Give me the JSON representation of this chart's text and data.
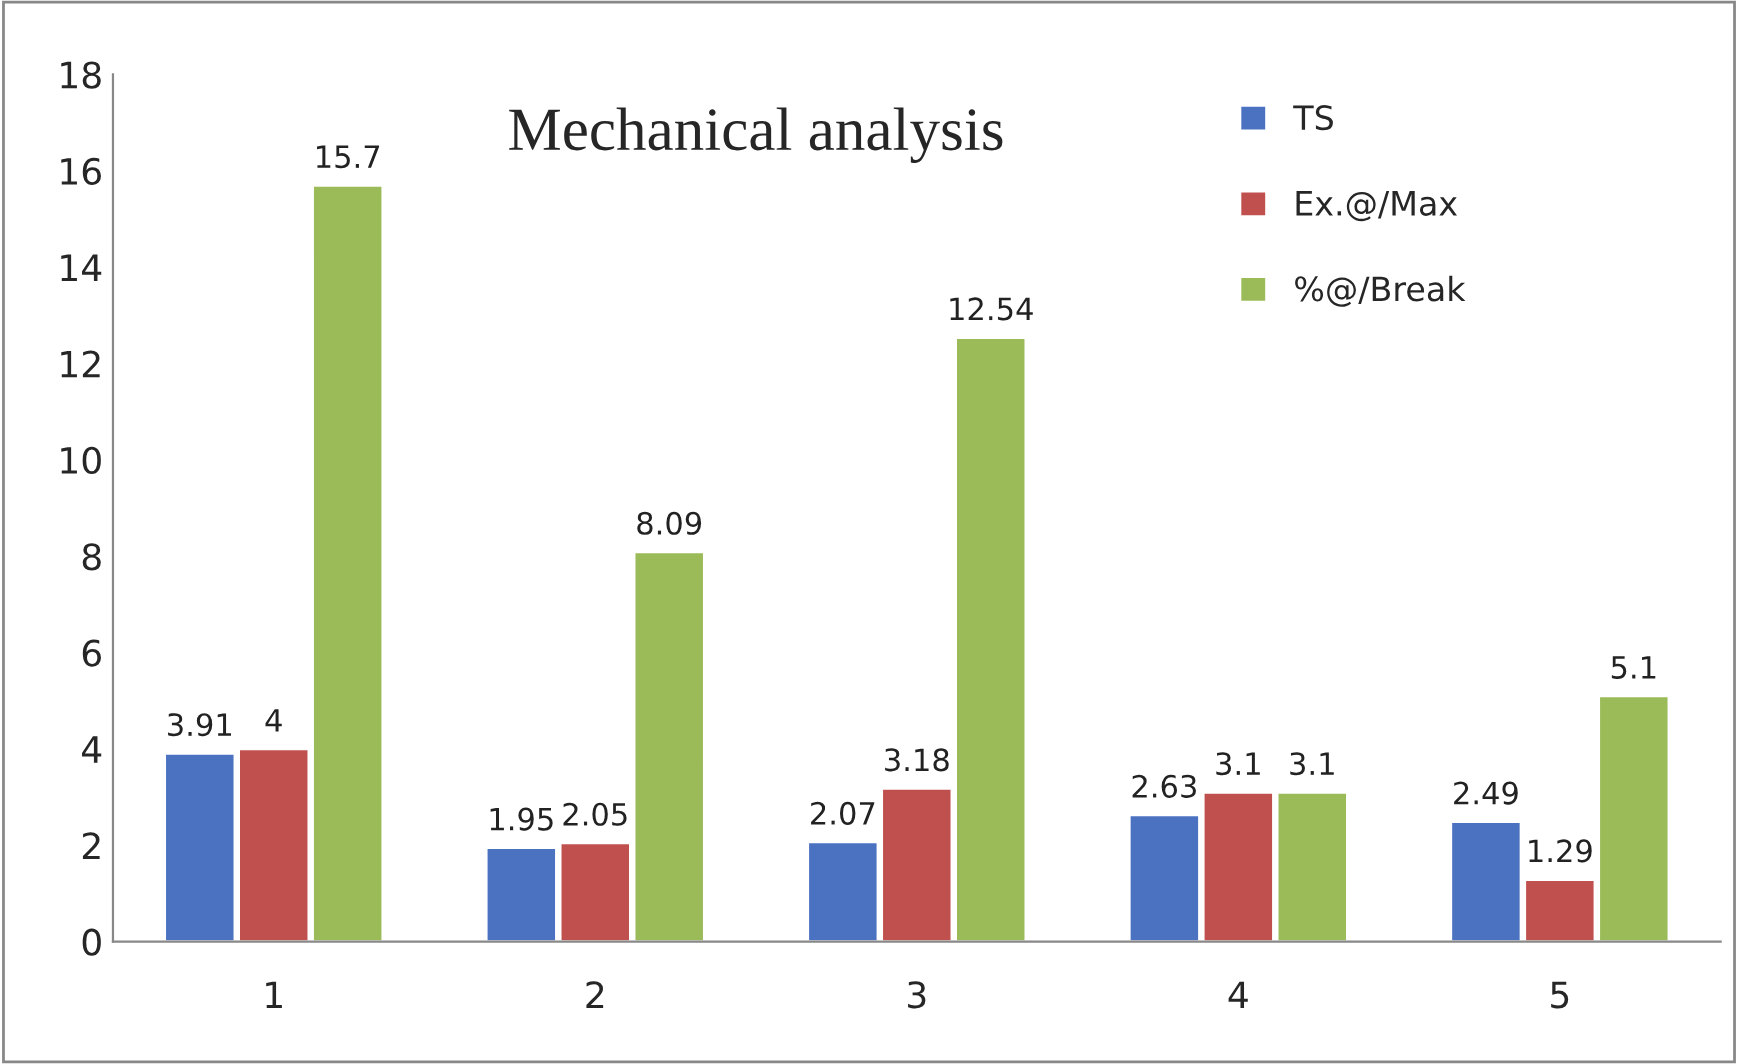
{
  "chart_data": {
    "type": "bar",
    "title": "Mechanical analysis",
    "categories": [
      "1",
      "2",
      "3",
      "4",
      "5"
    ],
    "series": [
      {
        "name": "TS",
        "color": "#4a72c0",
        "values": [
          3.91,
          1.95,
          2.07,
          2.63,
          2.49
        ]
      },
      {
        "name": "Ex.@/Max",
        "color": "#c0504d",
        "values": [
          4,
          2.05,
          3.18,
          3.1,
          1.29
        ]
      },
      {
        "name": "%@/Break",
        "color": "#9bbb59",
        "values": [
          15.7,
          8.09,
          12.54,
          3.1,
          5.1
        ]
      }
    ],
    "ylim": [
      0,
      18
    ],
    "yticks": [
      0,
      2,
      4,
      6,
      8,
      10,
      12,
      14,
      16,
      18
    ],
    "data_labels": true,
    "legend": "top right",
    "grid": false
  }
}
